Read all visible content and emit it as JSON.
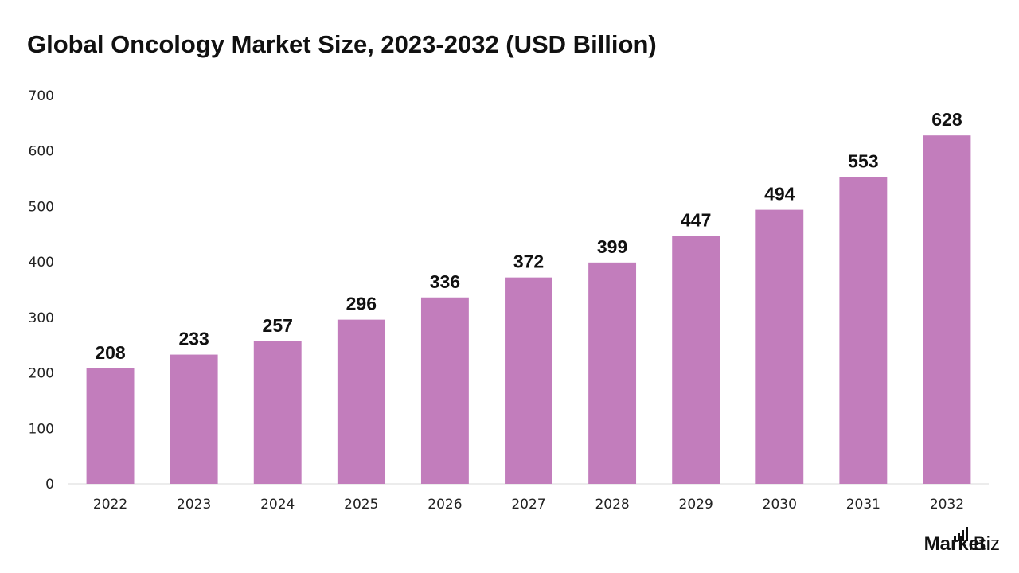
{
  "title": "Global Oncology Market Size, 2023-2032 (USD Billion)",
  "brand": {
    "main": "Market",
    "sub": ".Biz",
    "icon": "bar-chart-icon"
  },
  "colors": {
    "bar": "#C27DBC",
    "axis": "#D9D9D9",
    "text": "#111111"
  },
  "chart_data": {
    "type": "bar",
    "title": "Global Oncology Market Size, 2023-2032 (USD Billion)",
    "xlabel": "",
    "ylabel": "",
    "categories": [
      "2022",
      "2023",
      "2024",
      "2025",
      "2026",
      "2027",
      "2028",
      "2029",
      "2030",
      "2031",
      "2032"
    ],
    "values": [
      208,
      233,
      257,
      296,
      336,
      372,
      399,
      447,
      494,
      553,
      628
    ],
    "ylim": [
      0,
      700
    ],
    "yticks": [
      0,
      100,
      200,
      300,
      400,
      500,
      600,
      700
    ],
    "grid": false,
    "data_labels": true,
    "legend": "none"
  }
}
